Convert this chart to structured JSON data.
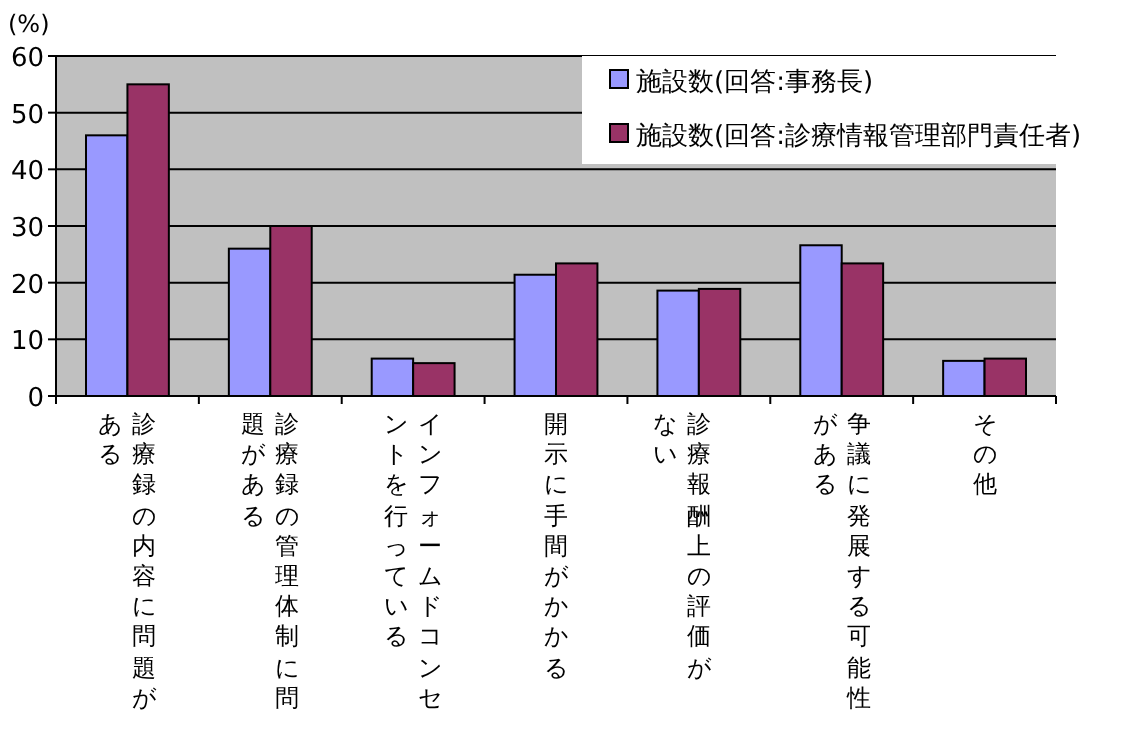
{
  "chart_data": {
    "type": "bar",
    "ylabel": "(%)",
    "categories": [
      "診療録の内容に問題がある",
      "診療録の管理体制に問題がある",
      "インフォームドコンセントを行っている",
      "開示に手間がかかる",
      "診療報酬上の評価がない",
      "争議に発展する可能性がある",
      "その他"
    ],
    "series": [
      {
        "name": "施設数(回答:事務長)",
        "color": "#9999ff",
        "values": [
          46,
          26,
          6.6,
          21.4,
          18.6,
          26.6,
          6.2
        ]
      },
      {
        "name": "施設数(回答:診療情報管理部門責任者)",
        "color": "#993366",
        "values": [
          55,
          30,
          5.8,
          23.4,
          18.9,
          23.4,
          6.6
        ]
      }
    ],
    "ylim": [
      0,
      60
    ],
    "yticks": [
      0,
      10,
      20,
      30,
      40,
      50,
      60
    ],
    "grid": "y",
    "legend": "top right"
  }
}
